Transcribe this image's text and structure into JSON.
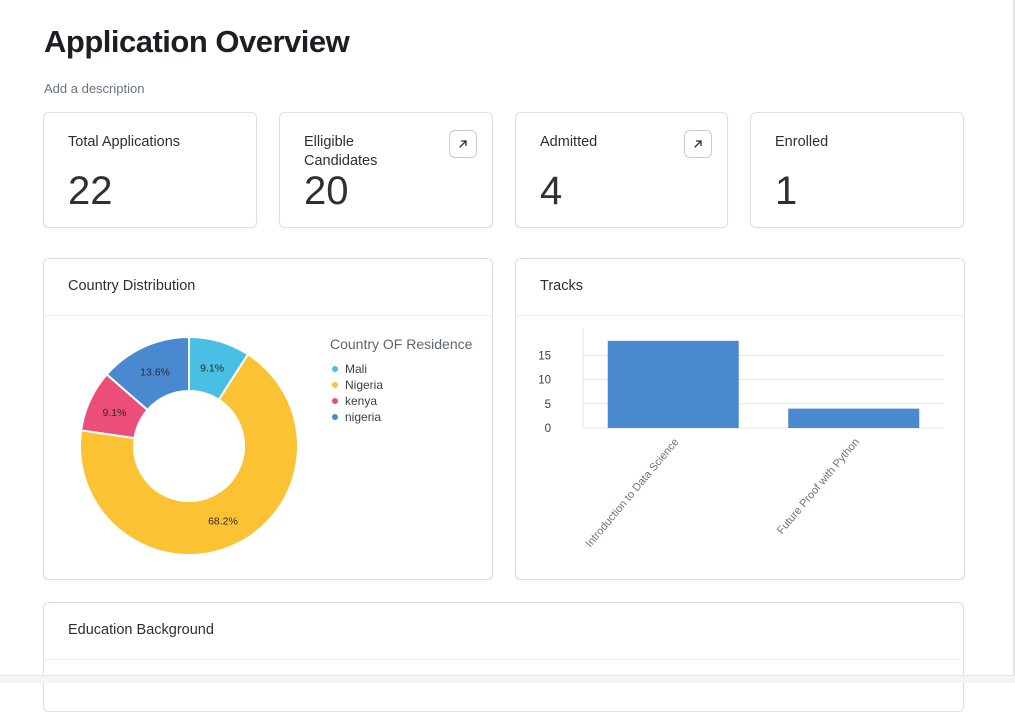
{
  "page": {
    "title": "Application Overview",
    "description": "Add a description"
  },
  "stats": [
    {
      "label": "Total Applications",
      "value": "22",
      "has_link": false
    },
    {
      "label": "Elligible Candidates",
      "value": "20",
      "has_link": true,
      "link_icon": "arrow-up-right-icon"
    },
    {
      "label": "Admitted",
      "value": "4",
      "has_link": true,
      "link_icon": "arrow-up-right-icon"
    },
    {
      "label": "Enrolled",
      "value": "1",
      "has_link": false
    }
  ],
  "country_panel": {
    "title": "Country Distribution",
    "legend_title": "Country OF Residence"
  },
  "tracks_panel": {
    "title": "Tracks"
  },
  "education_panel": {
    "title": "Education Background"
  },
  "chart_data": [
    {
      "type": "pie",
      "variant": "donut",
      "legend": "right",
      "slices": [
        {
          "label": "Mali",
          "value": 9.1,
          "display": "9.1%",
          "color": "#48bfe3"
        },
        {
          "label": "Nigeria",
          "value": 68.2,
          "display": "68.2%",
          "color": "#fbc234"
        },
        {
          "label": "kenya",
          "value": 9.1,
          "display": "9.1%",
          "color": "#ea4e79"
        },
        {
          "label": "nigeria",
          "value": 13.6,
          "display": "13.6%",
          "color": "#4a89d0"
        }
      ]
    },
    {
      "type": "bar",
      "categories": [
        "Introduction to Data Science",
        "Future Proof with Python"
      ],
      "values": [
        18,
        4
      ],
      "ylim": [
        0,
        19
      ],
      "yticks": [
        0,
        5,
        10,
        15
      ],
      "grid": true,
      "color": "#4a89d0"
    }
  ]
}
